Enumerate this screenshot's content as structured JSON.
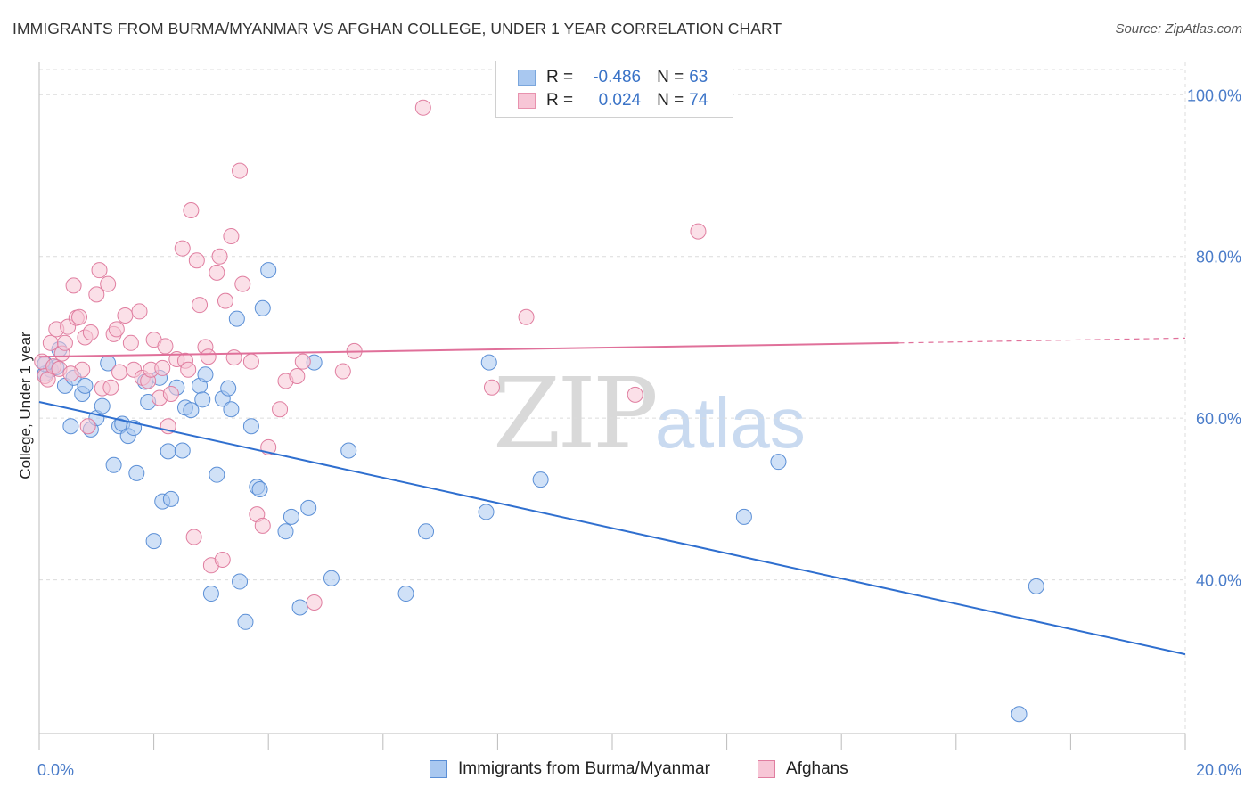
{
  "title": "IMMIGRANTS FROM BURMA/MYANMAR VS AFGHAN COLLEGE, UNDER 1 YEAR CORRELATION CHART",
  "source": "Source: ZipAtlas.com",
  "watermark": {
    "zip": "ZIP",
    "atlas": "atlas"
  },
  "legend_top": [
    {
      "r_label": "R =",
      "r_value": "-0.486",
      "n_label": "N =",
      "n_value": "63",
      "color": "#a9c8f0",
      "border": "#7aa6dc"
    },
    {
      "r_label": "R =",
      "r_value": "0.024",
      "n_label": "N =",
      "n_value": "74",
      "color": "#f7c6d6",
      "border": "#e892ae"
    }
  ],
  "legend_bottom": [
    {
      "label": "Immigrants from Burma/Myanmar",
      "color": "#a9c8f0",
      "border": "#5b8fd6"
    },
    {
      "label": "Afghans",
      "color": "#f7c6d6",
      "border": "#e07ea0"
    }
  ],
  "chart_data": {
    "type": "scatter",
    "title": "IMMIGRANTS FROM BURMA/MYANMAR VS AFGHAN COLLEGE, UNDER 1 YEAR CORRELATION CHART",
    "xlabel": "",
    "ylabel": "College, Under 1 year",
    "xlim": [
      0,
      20
    ],
    "ylim": [
      21,
      104
    ],
    "x_tick_labels": [
      "0.0%",
      "20.0%"
    ],
    "y_ticks": [
      40,
      60,
      80,
      100
    ],
    "y_tick_labels": [
      "40.0%",
      "60.0%",
      "80.0%",
      "100.0%"
    ],
    "grid": true,
    "legend_position": "top-center",
    "series": [
      {
        "name": "Immigrants from Burma/Myanmar",
        "color": "#5b8fd6",
        "fill": "#a9c8f0",
        "trend": {
          "x": [
            0,
            20
          ],
          "y": [
            62.0,
            30.8
          ],
          "color": "#2f6fcf"
        },
        "points": [
          [
            0.1,
            65.5
          ],
          [
            0.2,
            66
          ],
          [
            0.3,
            66.3
          ],
          [
            0.35,
            68.5
          ],
          [
            0.45,
            64
          ],
          [
            0.6,
            65
          ],
          [
            0.55,
            59
          ],
          [
            0.75,
            63
          ],
          [
            0.8,
            64
          ],
          [
            0.9,
            58.6
          ],
          [
            1.0,
            60
          ],
          [
            1.1,
            61.5
          ],
          [
            1.2,
            66.8
          ],
          [
            1.3,
            54.2
          ],
          [
            1.4,
            59
          ],
          [
            1.45,
            59.3
          ],
          [
            1.55,
            57.8
          ],
          [
            1.65,
            58.8
          ],
          [
            1.7,
            53.2
          ],
          [
            1.85,
            64.5
          ],
          [
            1.9,
            62
          ],
          [
            2.0,
            44.8
          ],
          [
            2.1,
            65
          ],
          [
            2.15,
            49.7
          ],
          [
            2.25,
            55.9
          ],
          [
            2.3,
            50
          ],
          [
            2.4,
            63.8
          ],
          [
            2.5,
            56
          ],
          [
            2.55,
            61.3
          ],
          [
            2.65,
            61
          ],
          [
            2.8,
            64
          ],
          [
            2.85,
            62.3
          ],
          [
            2.9,
            65.4
          ],
          [
            3.0,
            38.3
          ],
          [
            3.1,
            53
          ],
          [
            3.2,
            62.4
          ],
          [
            3.3,
            63.7
          ],
          [
            3.35,
            61.1
          ],
          [
            3.45,
            72.3
          ],
          [
            3.5,
            39.8
          ],
          [
            3.6,
            34.8
          ],
          [
            3.7,
            59
          ],
          [
            3.8,
            51.5
          ],
          [
            3.85,
            51.2
          ],
          [
            3.9,
            73.6
          ],
          [
            4.0,
            78.3
          ],
          [
            4.3,
            46
          ],
          [
            4.4,
            47.8
          ],
          [
            4.55,
            36.6
          ],
          [
            4.7,
            48.9
          ],
          [
            4.8,
            66.9
          ],
          [
            5.1,
            40.2
          ],
          [
            5.4,
            56
          ],
          [
            6.4,
            38.3
          ],
          [
            6.75,
            46
          ],
          [
            7.8,
            48.4
          ],
          [
            7.85,
            66.9
          ],
          [
            8.75,
            52.4
          ],
          [
            12.3,
            47.8
          ],
          [
            12.9,
            54.6
          ],
          [
            17.4,
            39.2
          ],
          [
            17.1,
            23.4
          ],
          [
            0.1,
            66.7
          ]
        ]
      },
      {
        "name": "Afghans",
        "color": "#e07ea0",
        "fill": "#f7c6d6",
        "trend": {
          "x": [
            0,
            15
          ],
          "y": [
            67.6,
            69.3
          ],
          "color": "#e0709a",
          "dashed_extension": {
            "x": [
              15,
              20
            ],
            "y": [
              69.3,
              69.9
            ]
          }
        },
        "points": [
          [
            0.05,
            67
          ],
          [
            0.1,
            65.2
          ],
          [
            0.15,
            64.8
          ],
          [
            0.2,
            69.3
          ],
          [
            0.25,
            66.4
          ],
          [
            0.3,
            71
          ],
          [
            0.4,
            68
          ],
          [
            0.45,
            69.3
          ],
          [
            0.5,
            71.3
          ],
          [
            0.6,
            76.4
          ],
          [
            0.65,
            72.4
          ],
          [
            0.7,
            72.5
          ],
          [
            0.75,
            66
          ],
          [
            0.8,
            70
          ],
          [
            0.85,
            59
          ],
          [
            0.9,
            70.6
          ],
          [
            1.0,
            75.3
          ],
          [
            1.05,
            78.3
          ],
          [
            1.1,
            63.7
          ],
          [
            1.2,
            76.6
          ],
          [
            1.25,
            63.8
          ],
          [
            1.3,
            70.4
          ],
          [
            1.35,
            71
          ],
          [
            1.4,
            65.7
          ],
          [
            1.5,
            72.7
          ],
          [
            1.6,
            69.3
          ],
          [
            1.65,
            66
          ],
          [
            1.75,
            73.2
          ],
          [
            1.8,
            65
          ],
          [
            1.9,
            64.6
          ],
          [
            1.95,
            66
          ],
          [
            2.0,
            69.7
          ],
          [
            2.1,
            62.5
          ],
          [
            2.15,
            66.2
          ],
          [
            2.2,
            68.9
          ],
          [
            2.25,
            59
          ],
          [
            2.3,
            63
          ],
          [
            2.4,
            67.3
          ],
          [
            2.5,
            81
          ],
          [
            2.55,
            67.1
          ],
          [
            2.6,
            66
          ],
          [
            2.65,
            85.7
          ],
          [
            2.7,
            45.3
          ],
          [
            2.75,
            79.5
          ],
          [
            2.8,
            74
          ],
          [
            2.9,
            68.8
          ],
          [
            2.95,
            67.6
          ],
          [
            3.0,
            41.8
          ],
          [
            3.1,
            78
          ],
          [
            3.15,
            80
          ],
          [
            3.2,
            42.5
          ],
          [
            3.25,
            74.5
          ],
          [
            3.35,
            82.5
          ],
          [
            3.4,
            67.5
          ],
          [
            3.5,
            90.6
          ],
          [
            3.55,
            76.6
          ],
          [
            3.7,
            67
          ],
          [
            3.8,
            48.1
          ],
          [
            3.9,
            46.7
          ],
          [
            4.0,
            56.4
          ],
          [
            4.2,
            61.1
          ],
          [
            4.3,
            64.6
          ],
          [
            4.5,
            65.2
          ],
          [
            4.6,
            67
          ],
          [
            4.8,
            37.2
          ],
          [
            5.3,
            65.8
          ],
          [
            5.5,
            68.3
          ],
          [
            6.7,
            98.4
          ],
          [
            7.9,
            63.8
          ],
          [
            8.5,
            72.5
          ],
          [
            10.4,
            62.9
          ],
          [
            11.5,
            83.1
          ],
          [
            0.35,
            66.1
          ],
          [
            0.55,
            65.5
          ]
        ]
      }
    ]
  }
}
